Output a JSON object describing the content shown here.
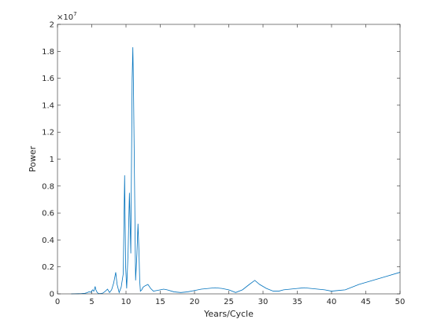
{
  "chart_data": {
    "type": "line",
    "title": "",
    "xlabel": "Years/Cycle",
    "ylabel": "Power",
    "xlim": [
      0,
      50
    ],
    "ylim": [
      0,
      20000000
    ],
    "x_ticks": [
      0,
      5,
      10,
      15,
      20,
      25,
      30,
      35,
      40,
      45,
      50
    ],
    "y_tick_values": [
      0,
      2000000,
      4000000,
      6000000,
      8000000,
      10000000,
      12000000,
      14000000,
      16000000,
      18000000,
      20000000
    ],
    "y_tick_labels": [
      "0",
      "0.2",
      "0.4",
      "0.6",
      "0.8",
      "1",
      "1.2",
      "1.4",
      "1.6",
      "1.8",
      "2"
    ],
    "y_exponent_base": "×10",
    "y_exponent_power": "7",
    "grid": false,
    "series": [
      {
        "color": "#0072BD",
        "x": [
          2.0,
          2.5,
          3.0,
          3.5,
          4.0,
          4.3,
          4.6,
          4.9,
          5.1,
          5.3,
          5.5,
          5.6,
          5.8,
          6.0,
          6.3,
          6.6,
          7.0,
          7.3,
          7.6,
          7.9,
          8.2,
          8.5,
          8.7,
          9.0,
          9.3,
          9.6,
          9.8,
          9.95,
          10.1,
          10.3,
          10.5,
          10.7,
          10.9,
          11.0,
          11.1,
          11.25,
          11.4,
          11.6,
          11.75,
          11.9,
          12.0,
          12.1,
          12.3,
          12.5,
          12.8,
          13.2,
          13.6,
          14.0,
          14.5,
          15.0,
          15.5,
          16.0,
          17.0,
          18.0,
          19.0,
          20.0,
          21.0,
          22.0,
          23.0,
          24.0,
          25.0,
          26.0,
          27.0,
          28.0,
          28.8,
          29.5,
          30.5,
          31.5,
          32.3,
          33.0,
          34.0,
          35.0,
          36.0,
          37.0,
          38.0,
          39.0,
          40.0,
          41.0,
          42.0,
          44.0,
          46.0,
          48.0,
          50.0
        ],
        "y": [
          0,
          5000,
          10000,
          20000,
          40000,
          80000,
          150000,
          120000,
          300000,
          200000,
          550000,
          300000,
          100000,
          20000,
          30000,
          50000,
          200000,
          350000,
          100000,
          300000,
          800000,
          1600000,
          700000,
          100000,
          500000,
          1500000,
          8800000,
          2000000,
          400000,
          3000000,
          7500000,
          3000000,
          16000000,
          18300000,
          15000000,
          8000000,
          1000000,
          3000000,
          5200000,
          3000000,
          1000000,
          200000,
          300000,
          500000,
          600000,
          700000,
          400000,
          200000,
          250000,
          300000,
          350000,
          300000,
          150000,
          100000,
          150000,
          250000,
          350000,
          400000,
          450000,
          400000,
          300000,
          100000,
          300000,
          700000,
          1000000,
          700000,
          400000,
          200000,
          200000,
          300000,
          350000,
          400000,
          450000,
          400000,
          350000,
          300000,
          200000,
          250000,
          300000,
          700000,
          1000000,
          1300000,
          1600000
        ]
      }
    ]
  }
}
